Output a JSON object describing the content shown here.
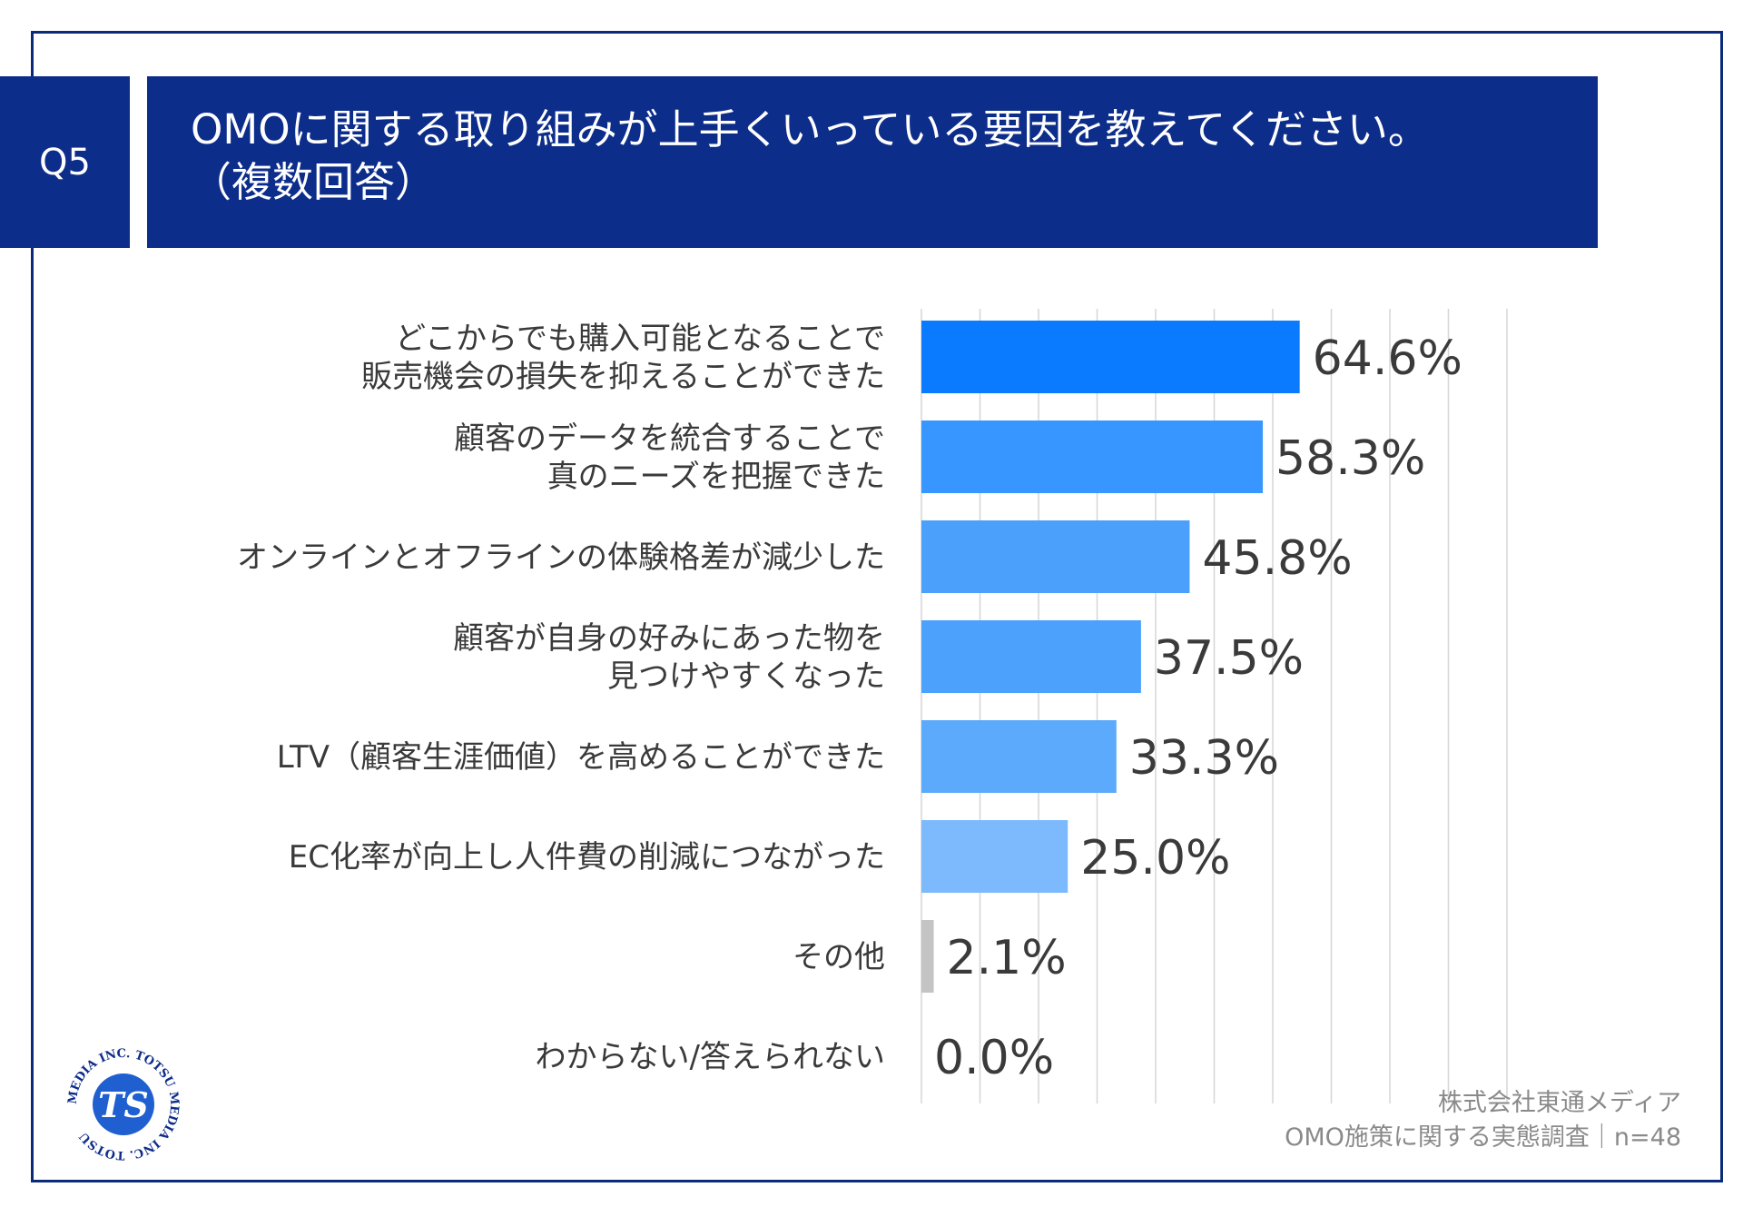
{
  "header": {
    "question_no": "Q5",
    "title_line1": "OMOに関する取り組みが上手くいっている要因を教えてください。",
    "title_line2": "（複数回答）"
  },
  "chart_data": {
    "type": "bar",
    "orientation": "horizontal",
    "grid": true,
    "xlim": [
      0,
      100
    ],
    "categories": [
      [
        "どこからでも購入可能となることで",
        "販売機会の損失を抑えることができた"
      ],
      [
        "顧客のデータを統合することで",
        "真のニーズを把握できた"
      ],
      [
        "オンラインとオフラインの体験格差が減少した"
      ],
      [
        "顧客が自身の好みにあった物を",
        "見つけやすくなった"
      ],
      [
        "LTV（顧客生涯価値）を高めることができた"
      ],
      [
        "EC化率が向上し人件費の削減につながった"
      ],
      [
        "その他"
      ],
      [
        "わからない/答えられない"
      ]
    ],
    "values": [
      64.6,
      58.3,
      45.8,
      37.5,
      33.3,
      25.0,
      2.1,
      0.0
    ],
    "value_labels": [
      "64.6%",
      "58.3%",
      "45.8%",
      "37.5%",
      "33.3%",
      "25.0%",
      "2.1%",
      "0.0%"
    ],
    "colors": [
      "#0a7bff",
      "#3796ff",
      "#4aa0fb",
      "#4ba1fb",
      "#5caafb",
      "#7cbafd",
      "#c4c4c4",
      "#c4c4c4"
    ]
  },
  "footer": {
    "company": "株式会社東通メディア",
    "survey": "OMO施策に関する実態調査｜n=48"
  },
  "logo": {
    "ring_text": "MEDIA INC. TOTSU MEDIA INC. TOTSU",
    "mark": "TS"
  }
}
